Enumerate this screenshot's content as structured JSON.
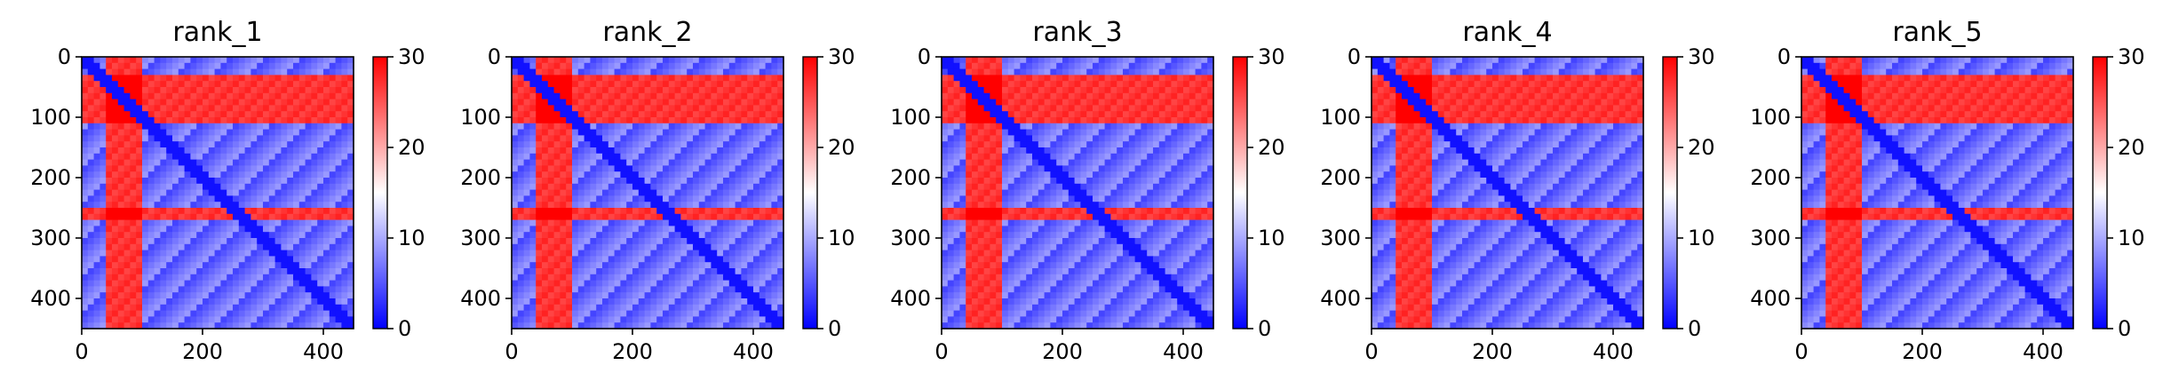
{
  "colors": {
    "low": "#0000ff",
    "mid": "#ffffff",
    "high": "#ff0000"
  },
  "chart_data": [
    {
      "type": "heatmap",
      "title": "rank_1",
      "xlabel": "",
      "ylabel": "",
      "x_range": [
        0,
        450
      ],
      "y_range": [
        450,
        0
      ],
      "x_ticks": [
        "0",
        "200",
        "400"
      ],
      "y_ticks": [
        "0",
        "100",
        "200",
        "300",
        "400"
      ],
      "colorbar": {
        "range": [
          0,
          30
        ],
        "ticks": [
          "0",
          "10",
          "20",
          "30"
        ],
        "colormap": "bwr"
      },
      "regions": {
        "high_rows": [
          [
            30,
            110
          ],
          [
            255,
            270
          ]
        ],
        "high_cols": [
          [
            40,
            95
          ]
        ],
        "diagonal_low": true
      }
    },
    {
      "type": "heatmap",
      "title": "rank_2",
      "xlabel": "",
      "ylabel": "",
      "x_range": [
        0,
        450
      ],
      "y_range": [
        450,
        0
      ],
      "x_ticks": [
        "0",
        "200",
        "400"
      ],
      "y_ticks": [
        "0",
        "100",
        "200",
        "300",
        "400"
      ],
      "colorbar": {
        "range": [
          0,
          30
        ],
        "ticks": [
          "0",
          "10",
          "20",
          "30"
        ],
        "colormap": "bwr"
      },
      "regions": {
        "high_rows": [
          [
            30,
            110
          ],
          [
            255,
            270
          ]
        ],
        "high_cols": [
          [
            40,
            95
          ]
        ],
        "diagonal_low": true
      }
    },
    {
      "type": "heatmap",
      "title": "rank_3",
      "xlabel": "",
      "ylabel": "",
      "x_range": [
        0,
        450
      ],
      "y_range": [
        450,
        0
      ],
      "x_ticks": [
        "0",
        "200",
        "400"
      ],
      "y_ticks": [
        "0",
        "100",
        "200",
        "300",
        "400"
      ],
      "colorbar": {
        "range": [
          0,
          30
        ],
        "ticks": [
          "0",
          "10",
          "20",
          "30"
        ],
        "colormap": "bwr"
      },
      "regions": {
        "high_rows": [
          [
            30,
            110
          ],
          [
            255,
            270
          ]
        ],
        "high_cols": [
          [
            40,
            95
          ]
        ],
        "diagonal_low": true
      }
    },
    {
      "type": "heatmap",
      "title": "rank_4",
      "xlabel": "",
      "ylabel": "",
      "x_range": [
        0,
        450
      ],
      "y_range": [
        450,
        0
      ],
      "x_ticks": [
        "0",
        "200",
        "400"
      ],
      "y_ticks": [
        "0",
        "100",
        "200",
        "300",
        "400"
      ],
      "colorbar": {
        "range": [
          0,
          30
        ],
        "ticks": [
          "0",
          "10",
          "20",
          "30"
        ],
        "colormap": "bwr"
      },
      "regions": {
        "high_rows": [
          [
            30,
            110
          ],
          [
            255,
            270
          ]
        ],
        "high_cols": [
          [
            40,
            95
          ]
        ],
        "diagonal_low": true
      }
    },
    {
      "type": "heatmap",
      "title": "rank_5",
      "xlabel": "",
      "ylabel": "",
      "x_range": [
        0,
        450
      ],
      "y_range": [
        450,
        0
      ],
      "x_ticks": [
        "0",
        "200",
        "400"
      ],
      "y_ticks": [
        "0",
        "100",
        "200",
        "300",
        "400"
      ],
      "colorbar": {
        "range": [
          0,
          30
        ],
        "ticks": [
          "0",
          "10",
          "20",
          "30"
        ],
        "colormap": "bwr"
      },
      "regions": {
        "high_rows": [
          [
            30,
            110
          ],
          [
            255,
            270
          ]
        ],
        "high_cols": [
          [
            40,
            95
          ]
        ],
        "diagonal_low": true
      }
    }
  ]
}
